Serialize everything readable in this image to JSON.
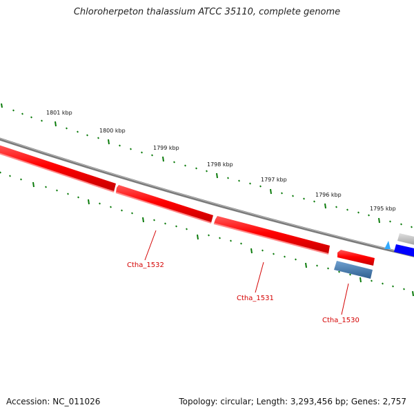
{
  "title": "Chloroherpeton thalassium ATCC 35110, complete genome",
  "footer": {
    "accession": "Accession: NC_011026",
    "stats": "Topology: circular; Length: 3,293,456 bp; Genes: 2,757"
  },
  "ruler": {
    "labels": [
      "1801 kbp",
      "1800 kbp",
      "1799 kbp",
      "1798 kbp",
      "1797 kbp",
      "1796 kbp",
      "1795 kbp"
    ]
  },
  "genes": [
    {
      "label": "Ctha_1532"
    },
    {
      "label": "Ctha_1531"
    },
    {
      "label": "Ctha_1530"
    }
  ],
  "colors": {
    "forward_feature": "#ff0000",
    "reverse_feature": "#4a7fb5",
    "backbone": "#7a7a7a",
    "ticks": "#0a7a0a",
    "label": "#d40000",
    "blue_feature": "#0000ff",
    "cyan_marker": "#33aaff"
  }
}
